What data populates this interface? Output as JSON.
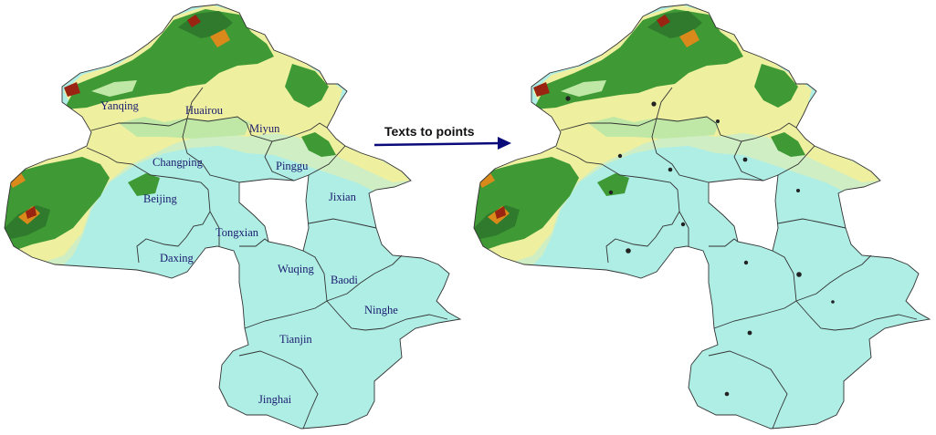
{
  "transform": {
    "caption": "Texts to points",
    "arrow_color": "#0a0a7a"
  },
  "map_colors": {
    "lowland": "#aeeee5",
    "plain_green": "#bfe8a6",
    "hill_yellow": "#eef0a0",
    "forest_green": "#3f9a35",
    "dark_green": "#2f7a2c",
    "orange_ridge": "#d98a1a",
    "red_peak": "#9a2412",
    "hole": "#ffffff"
  },
  "place_labels": [
    {
      "id": "yanqing",
      "text": "Yanqing"
    },
    {
      "id": "huairou",
      "text": "Huairou"
    },
    {
      "id": "miyun",
      "text": "Miyun"
    },
    {
      "id": "changping",
      "text": "Changping"
    },
    {
      "id": "pinggu",
      "text": "Pinggu"
    },
    {
      "id": "beijing",
      "text": "Beijing"
    },
    {
      "id": "jixian",
      "text": "Jixian"
    },
    {
      "id": "tongxian",
      "text": "Tongxian"
    },
    {
      "id": "daxing",
      "text": "Daxing"
    },
    {
      "id": "wuqing",
      "text": "Wuqing"
    },
    {
      "id": "baodi",
      "text": "Baodi"
    },
    {
      "id": "ninghe",
      "text": "Ninghe"
    },
    {
      "id": "tianjin",
      "text": "Tianjin"
    },
    {
      "id": "jinghai",
      "text": "Jinghai"
    }
  ]
}
